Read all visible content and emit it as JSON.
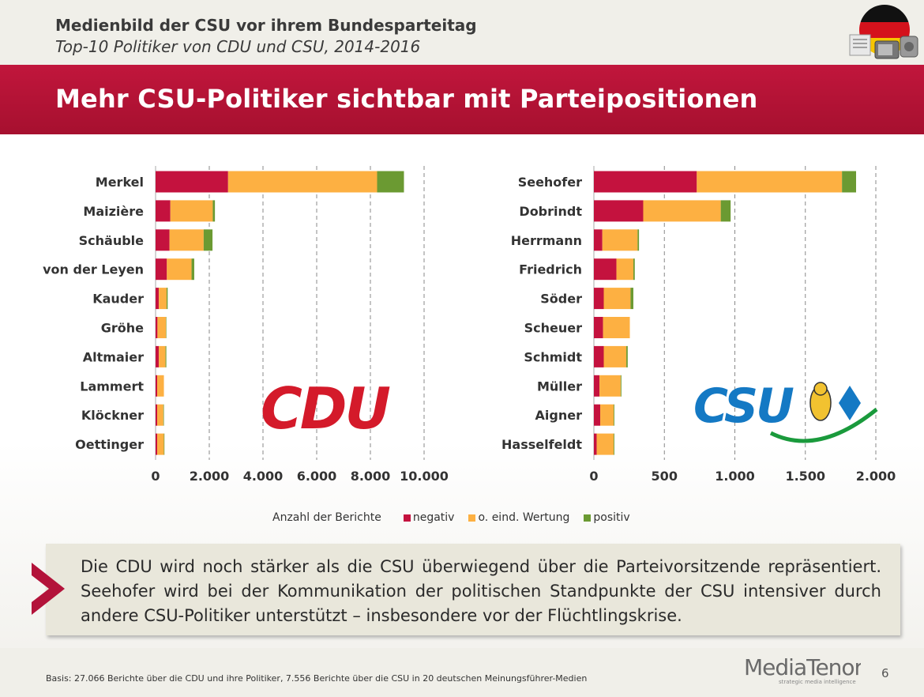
{
  "header": {
    "title": "Medienbild der CSU vor ihrem Bundesparteitag",
    "subtitle": "Top-10 Politiker von CDU und CSU, 2014-2016"
  },
  "headline": "Mehr CSU-Politiker sichtbar mit Parteipositionen",
  "colors": {
    "negativ": "#c4123e",
    "neutral": "#fdb042",
    "positiv": "#6b9a32",
    "brand_red": "#b3133a"
  },
  "legend": {
    "title": "Anzahl der Berichte",
    "negativ": "negativ",
    "neutral": "o. eind. Wertung",
    "positiv": "positiv"
  },
  "chart_data": [
    {
      "type": "bar",
      "orientation": "horizontal",
      "stacked": true,
      "categories": [
        "Merkel",
        "Maizière",
        "Schäuble",
        "von der Leyen",
        "Kauder",
        "Gröhe",
        "Altmaier",
        "Lammert",
        "Klöckner",
        "Oettinger"
      ],
      "series": [
        {
          "name": "negativ",
          "values": [
            2700,
            550,
            520,
            420,
            120,
            70,
            120,
            60,
            60,
            60
          ]
        },
        {
          "name": "o. eind. Wertung",
          "values": [
            5550,
            1580,
            1270,
            920,
            290,
            320,
            250,
            250,
            230,
            250
          ]
        },
        {
          "name": "positiv",
          "values": [
            1000,
            80,
            330,
            100,
            40,
            10,
            30,
            0,
            20,
            20
          ]
        }
      ],
      "xlim": [
        0,
        10000
      ],
      "xticks": [
        "0",
        "2.000",
        "4.000",
        "6.000",
        "8.000",
        "10.000"
      ],
      "xlabel": "Anzahl der Berichte",
      "logo": "CDU"
    },
    {
      "type": "bar",
      "orientation": "horizontal",
      "stacked": true,
      "categories": [
        "Seehofer",
        "Dobrindt",
        "Herrmann",
        "Friedrich",
        "Söder",
        "Scheuer",
        "Schmidt",
        "Müller",
        "Aigner",
        "Hasselfeldt"
      ],
      "series": [
        {
          "name": "negativ",
          "values": [
            730,
            350,
            60,
            160,
            70,
            65,
            70,
            40,
            45,
            20
          ]
        },
        {
          "name": "o. eind. Wertung",
          "values": [
            1030,
            550,
            250,
            120,
            190,
            190,
            160,
            150,
            95,
            120
          ]
        },
        {
          "name": "positiv",
          "values": [
            100,
            70,
            10,
            10,
            20,
            0,
            10,
            5,
            5,
            5
          ]
        }
      ],
      "xlim": [
        0,
        2000
      ],
      "xticks": [
        "0",
        "500",
        "1.000",
        "1.500",
        "2.000"
      ],
      "xlabel": "Anzahl der Berichte",
      "logo": "CSU"
    }
  ],
  "logos": {
    "cdu": "CDU",
    "csu": "CSU"
  },
  "callout": "Die CDU wird noch stärker als die CSU überwiegend über die Parteivorsitzende repräsentiert. Seehofer wird bei der Kommunikation der politischen Standpunkte der CSU intensiver durch andere CSU-Politiker unterstützt – insbesondere vor der Flüchtlingskrise.",
  "footer": {
    "basis": "Basis: 27.066 Berichte über die CDU und ihre Politiker, 7.556 Berichte über die CSU in 20 deutschen Meinungsführer-Medien",
    "brand": "MediaTenor",
    "brand_tagline": "strategic media intelligence",
    "page": "6"
  },
  "icons": {
    "corner": "germany-media-icon",
    "callout_arrow": "chevron-right-icon"
  }
}
